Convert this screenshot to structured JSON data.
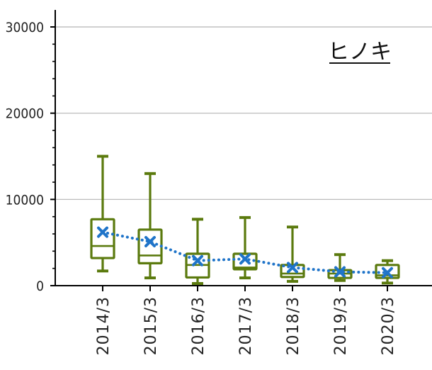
{
  "chart_data": {
    "type": "box",
    "title": "ヒノキ",
    "xlabel": "",
    "ylabel": "",
    "ylim": [
      0,
      30000
    ],
    "yticks": [
      0,
      10000,
      20000,
      30000
    ],
    "ytick_labels": [
      "0",
      "10000",
      "20000",
      "30000"
    ],
    "categories": [
      "2014/3",
      "2015/3",
      "2016/3",
      "2017/3",
      "2018/3",
      "2019/3",
      "2020/3"
    ],
    "boxes": [
      {
        "min": 1700,
        "q1": 3200,
        "median": 4600,
        "q3": 7700,
        "max": 15000
      },
      {
        "min": 900,
        "q1": 2600,
        "median": 3500,
        "q3": 6500,
        "max": 13000
      },
      {
        "min": 250,
        "q1": 950,
        "median": 2400,
        "q3": 3700,
        "max": 7700
      },
      {
        "min": 900,
        "q1": 1900,
        "median": 2100,
        "q3": 3700,
        "max": 7900
      },
      {
        "min": 500,
        "q1": 1000,
        "median": 1400,
        "q3": 2400,
        "max": 6800
      },
      {
        "min": 600,
        "q1": 900,
        "median": 1400,
        "q3": 1800,
        "max": 3600
      },
      {
        "min": 300,
        "q1": 900,
        "median": 1200,
        "q3": 2400,
        "max": 2900
      }
    ],
    "mean": [
      6200,
      5100,
      2900,
      3100,
      2100,
      1600,
      1500
    ],
    "grid": true,
    "colors": {
      "box": "#5b7a0e",
      "mean": "#1f74c9",
      "grid": "#b5b5b5",
      "axis": "#000000"
    }
  }
}
